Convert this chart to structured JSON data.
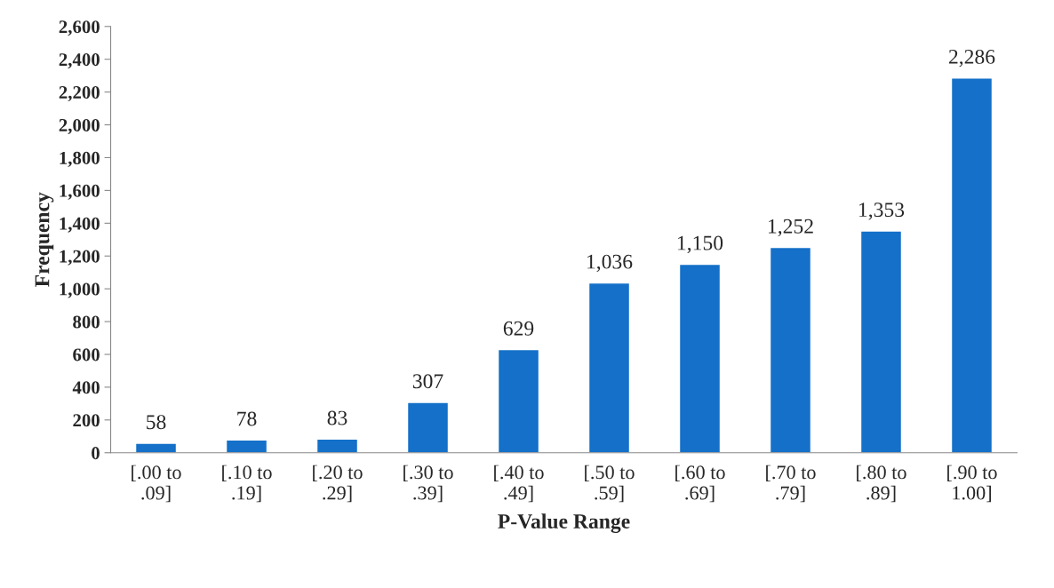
{
  "chart_data": {
    "type": "bar",
    "xlabel": "P-Value Range",
    "ylabel": "Frequency",
    "categories": [
      "[.00 to\n.09]",
      "[.10 to\n.19]",
      "[.20 to\n.29]",
      "[.30 to\n.39]",
      "[.40 to\n.49]",
      "[.50 to\n.59]",
      "[.60 to\n.69]",
      "[.70 to\n.79]",
      "[.80 to\n.89]",
      "[.90 to\n1.00]"
    ],
    "values": [
      58,
      78,
      83,
      307,
      629,
      1036,
      1150,
      1252,
      1353,
      2286
    ],
    "value_labels": [
      "58",
      "78",
      "83",
      "307",
      "629",
      "1,036",
      "1,150",
      "1,252",
      "1,353",
      "2,286"
    ],
    "color": "#1470c8",
    "ylim": [
      0,
      2600
    ],
    "yticks": [
      0,
      200,
      400,
      600,
      800,
      {
        "value": 1000,
        "label": "1,000"
      },
      {
        "value": 1200,
        "label": "1,200"
      },
      {
        "value": 1400,
        "label": "1,400"
      },
      {
        "value": 1600,
        "label": "1,600"
      },
      {
        "value": 1800,
        "label": "1,800"
      },
      {
        "value": 2000,
        "label": "2,000"
      },
      {
        "value": 2200,
        "label": "2,200"
      },
      {
        "value": 2400,
        "label": "2,400"
      },
      {
        "value": 2600,
        "label": "2,600"
      }
    ],
    "grid": false
  }
}
